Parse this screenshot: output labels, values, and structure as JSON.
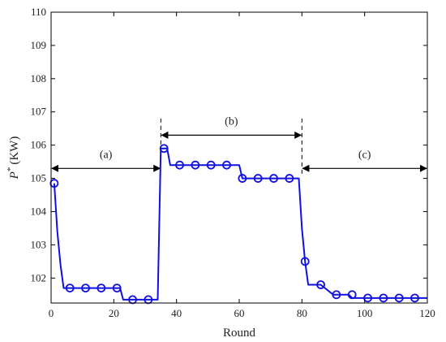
{
  "chart_data": {
    "type": "line",
    "title": "",
    "xlabel": "Round",
    "ylabel": {
      "symbol": "P",
      "superscript": "*",
      "unit": "(KW)"
    },
    "xlim": [
      0,
      120
    ],
    "ylim": [
      101.25,
      110
    ],
    "xticks": [
      "0",
      "20",
      "40",
      "60",
      "80",
      "100",
      "120"
    ],
    "yticks": [
      "102",
      "103",
      "104",
      "105",
      "106",
      "107",
      "108",
      "109",
      "110"
    ],
    "grid": false,
    "legend": "none",
    "colors": {
      "series": "#1010e0",
      "annotation": "#000000"
    },
    "series": [
      {
        "x": [
          1,
          2,
          3,
          4,
          5,
          6,
          7,
          10,
          15,
          20,
          22,
          23,
          25,
          26,
          30,
          34,
          35,
          36,
          37,
          38,
          40,
          45,
          50,
          55,
          58,
          60,
          61,
          65,
          70,
          75,
          79,
          80,
          81,
          82,
          83,
          85,
          86,
          90,
          95,
          96,
          100,
          105,
          110,
          115,
          120
        ],
        "y": [
          104.85,
          103.4,
          102.4,
          101.7,
          101.7,
          101.7,
          101.7,
          101.7,
          101.7,
          101.7,
          101.7,
          101.35,
          101.35,
          101.35,
          101.35,
          101.35,
          105.9,
          105.9,
          105.9,
          105.4,
          105.4,
          105.4,
          105.4,
          105.4,
          105.4,
          105.4,
          105.0,
          105.0,
          105.0,
          105.0,
          105.0,
          103.5,
          102.5,
          101.8,
          101.8,
          101.8,
          101.8,
          101.5,
          101.5,
          101.4,
          101.4,
          101.4,
          101.4,
          101.4,
          101.4
        ],
        "markers_x": [
          1,
          6,
          11,
          16,
          21,
          26,
          31,
          36,
          41,
          46,
          51,
          56,
          61,
          66,
          71,
          76,
          81,
          86,
          91,
          96,
          101,
          106,
          111,
          116
        ],
        "markers_y": [
          104.85,
          101.7,
          101.7,
          101.7,
          101.7,
          101.35,
          101.35,
          105.9,
          105.4,
          105.4,
          105.4,
          105.4,
          105.0,
          105.0,
          105.0,
          105.0,
          102.5,
          101.8,
          101.5,
          101.5,
          101.4,
          101.4,
          101.4,
          101.4
        ]
      }
    ],
    "annotations": [
      {
        "label": "(a)",
        "x_from": 0,
        "x_to": 35,
        "y": 105.3
      },
      {
        "label": "(b)",
        "x_from": 35,
        "x_to": 80,
        "y": 106.3
      },
      {
        "label": "(c)",
        "x_from": 80,
        "x_to": 120,
        "y": 105.3
      }
    ],
    "dividers": [
      {
        "x": 35,
        "y_from": 105.9,
        "y_to": 106.8
      },
      {
        "x": 80,
        "y_from": 105.1,
        "y_to": 106.8
      }
    ]
  }
}
